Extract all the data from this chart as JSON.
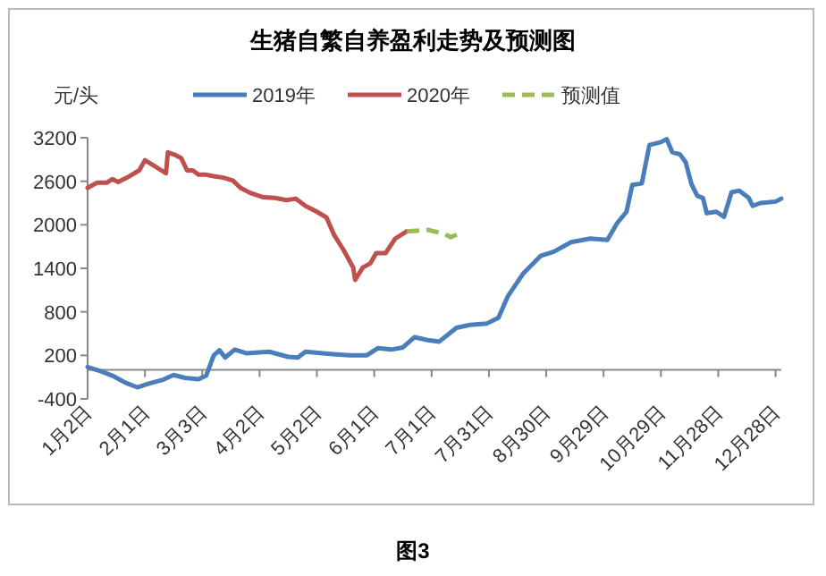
{
  "chart_data": {
    "type": "line",
    "title": "生猪自繁自养盈利走势及预测图",
    "ylabel": "元/头",
    "annotations": [
      "图3"
    ],
    "grid": false,
    "legend": "top",
    "xlim": [
      "--01-02",
      "--12-31"
    ],
    "ylim": [
      -400,
      3200
    ],
    "yticks": [
      -400,
      200,
      800,
      1400,
      2000,
      2600,
      3200
    ],
    "xticks": [
      {
        "value": "--01-02",
        "label": "1月2日"
      },
      {
        "value": "--02-01",
        "label": "2月1日"
      },
      {
        "value": "--03-03",
        "label": "3月3日"
      },
      {
        "value": "--04-02",
        "label": "4月2日"
      },
      {
        "value": "--05-02",
        "label": "5月2日"
      },
      {
        "value": "--06-01",
        "label": "6月1日"
      },
      {
        "value": "--07-01",
        "label": "7月1日"
      },
      {
        "value": "--07-31",
        "label": "7月31日"
      },
      {
        "value": "--08-30",
        "label": "8月30日"
      },
      {
        "value": "--09-29",
        "label": "9月29日"
      },
      {
        "value": "--10-29",
        "label": "10月29日"
      },
      {
        "value": "--11-28",
        "label": "11月28日"
      },
      {
        "value": "--12-28",
        "label": "12月28日"
      }
    ],
    "series": [
      {
        "name": "2019年",
        "color": "#4a7ebb",
        "line_style": "solid",
        "x": [
          "--01-02",
          "--01-09",
          "--01-15",
          "--01-22",
          "--01-28",
          "--02-03",
          "--02-10",
          "--02-16",
          "--02-22",
          "--03-01",
          "--03-05",
          "--03-09",
          "--03-12",
          "--03-15",
          "--03-20",
          "--03-26",
          "--04-07",
          "--04-17",
          "--04-22",
          "--04-26",
          "--05-09",
          "--05-19",
          "--05-28",
          "--06-03",
          "--06-10",
          "--06-16",
          "--06-22",
          "--06-29",
          "--07-05",
          "--07-14",
          "--07-21",
          "--07-30",
          "--08-05",
          "--08-10",
          "--08-18",
          "--08-27",
          "--09-03",
          "--09-12",
          "--09-22",
          "--10-01",
          "--10-06",
          "--10-11",
          "--10-14",
          "--10-19",
          "--10-23",
          "--10-29",
          "--11-01",
          "--11-04",
          "--11-08",
          "--11-11",
          "--11-14",
          "--11-17",
          "--11-20",
          "--11-22",
          "--11-27",
          "--12-01",
          "--12-05",
          "--12-09",
          "--12-14",
          "--12-16",
          "--12-20",
          "--12-28",
          "--12-31"
        ],
        "values": [
          40,
          -20,
          -80,
          -180,
          -240,
          -190,
          -140,
          -70,
          -110,
          -130,
          -80,
          200,
          270,
          170,
          280,
          230,
          250,
          180,
          170,
          250,
          220,
          200,
          200,
          300,
          280,
          310,
          450,
          410,
          390,
          580,
          620,
          640,
          720,
          1020,
          1330,
          1570,
          1630,
          1760,
          1810,
          1790,
          2020,
          2180,
          2550,
          2570,
          3100,
          3140,
          3180,
          3000,
          2970,
          2860,
          2560,
          2400,
          2370,
          2160,
          2180,
          2110,
          2450,
          2470,
          2370,
          2260,
          2300,
          2320,
          2360
        ]
      },
      {
        "name": "2020年",
        "color": "#c0504d",
        "line_style": "solid",
        "x": [
          "--01-02",
          "--01-07",
          "--01-12",
          "--01-15",
          "--01-18",
          "--01-24",
          "--01-29",
          "--02-01",
          "--02-06",
          "--02-12",
          "--02-13",
          "--02-17",
          "--02-20",
          "--02-23",
          "--02-26",
          "--03-01",
          "--03-05",
          "--03-09",
          "--03-14",
          "--03-19",
          "--03-23",
          "--03-28",
          "--04-04",
          "--04-10",
          "--04-16",
          "--04-21",
          "--04-26",
          "--05-02",
          "--05-07",
          "--05-11",
          "--05-16",
          "--05-21",
          "--05-22",
          "--05-26",
          "--05-30",
          "--06-02",
          "--06-07",
          "--06-12",
          "--06-18"
        ],
        "values": [
          2510,
          2580,
          2580,
          2630,
          2590,
          2670,
          2750,
          2890,
          2810,
          2710,
          3000,
          2960,
          2920,
          2750,
          2750,
          2690,
          2690,
          2670,
          2650,
          2610,
          2510,
          2440,
          2380,
          2370,
          2340,
          2360,
          2260,
          2180,
          2100,
          1860,
          1650,
          1410,
          1240,
          1410,
          1470,
          1610,
          1610,
          1810,
          1910
        ]
      },
      {
        "name": "预测值",
        "color": "#9bbb59",
        "line_style": "dashed",
        "x": [
          "--06-18",
          "--06-29",
          "--07-07",
          "--07-11",
          "--07-16"
        ],
        "values": [
          1910,
          1930,
          1880,
          1830,
          1880
        ]
      }
    ]
  }
}
